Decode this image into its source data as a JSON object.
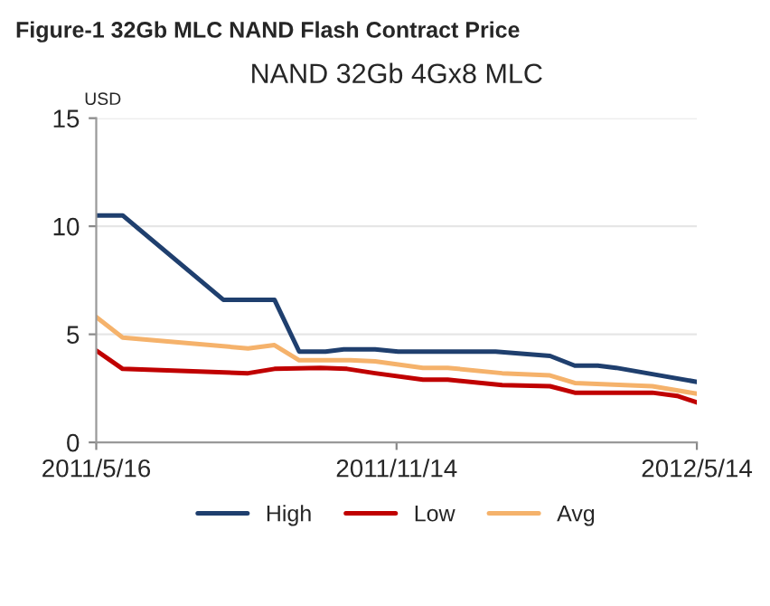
{
  "chart_data": {
    "type": "line",
    "title": "Figure-1 32Gb MLC NAND Flash Contract Price",
    "subtitle": "NAND 32Gb 4Gx8 MLC",
    "ylabel": "USD",
    "xlim": [
      "2011-05-16",
      "2012-05-14"
    ],
    "xticks": [
      {
        "value": "2011-05-16",
        "label": "2011/5/16"
      },
      {
        "value": "2011-11-14",
        "label": "2011/11/14"
      },
      {
        "value": "2012-05-14",
        "label": "2012/5/14"
      }
    ],
    "ylim": [
      0,
      15
    ],
    "yticks": [
      0,
      5,
      10,
      15
    ],
    "grid": "y",
    "legend": "bottom",
    "marker": "none",
    "line_style": "solid",
    "series": [
      {
        "name": "High",
        "color": "#1f3f6e",
        "x": [
          "2011-05-16",
          "2011-06-01",
          "2011-08-01",
          "2011-09-01",
          "2011-09-16",
          "2011-10-02",
          "2011-10-13",
          "2011-11-01",
          "2011-11-15",
          "2012-01-13",
          "2012-02-15",
          "2012-03-01",
          "2012-03-15",
          "2012-03-26",
          "2012-05-14"
        ],
        "values": [
          10.5,
          10.5,
          6.6,
          6.6,
          4.2,
          4.2,
          4.3,
          4.3,
          4.2,
          4.2,
          4.0,
          3.55,
          3.55,
          3.45,
          2.8
        ]
      },
      {
        "name": "Low",
        "color": "#c00000",
        "x": [
          "2011-05-16",
          "2011-06-01",
          "2011-08-16",
          "2011-09-01",
          "2011-09-29",
          "2011-10-15",
          "2011-11-01",
          "2011-11-30",
          "2011-12-15",
          "2012-01-17",
          "2012-02-15",
          "2012-03-01",
          "2012-04-17",
          "2012-05-02",
          "2012-05-14"
        ],
        "values": [
          4.25,
          3.4,
          3.2,
          3.4,
          3.45,
          3.4,
          3.2,
          2.9,
          2.9,
          2.65,
          2.6,
          2.3,
          2.3,
          2.15,
          1.85
        ]
      },
      {
        "name": "Avg",
        "color": "#f5b26b",
        "x": [
          "2011-05-16",
          "2011-06-01",
          "2011-08-16",
          "2011-09-01",
          "2011-09-16",
          "2011-10-17",
          "2011-11-01",
          "2011-11-30",
          "2011-12-15",
          "2012-01-17",
          "2012-02-15",
          "2012-03-01",
          "2012-04-17",
          "2012-05-14"
        ],
        "values": [
          5.8,
          4.85,
          4.35,
          4.5,
          3.8,
          3.8,
          3.75,
          3.45,
          3.45,
          3.2,
          3.1,
          2.75,
          2.6,
          2.25
        ]
      }
    ]
  }
}
